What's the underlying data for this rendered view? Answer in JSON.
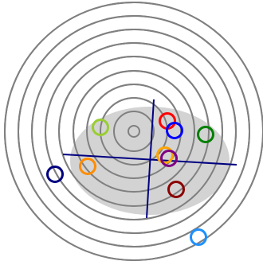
{
  "colors": {
    "background": "#ffffff",
    "rings": "#808080",
    "blob": "#d3d3d3",
    "axes": "#000080"
  },
  "diagram": {
    "ring_count": 9,
    "markers": [
      {
        "id": "yellowgreen",
        "color": "#9acd32"
      },
      {
        "id": "red",
        "color": "#ff0000"
      },
      {
        "id": "blue",
        "color": "#0000ff"
      },
      {
        "id": "green",
        "color": "#008000"
      },
      {
        "id": "orange-center",
        "color": "#ffa500"
      },
      {
        "id": "purple",
        "color": "#800080"
      },
      {
        "id": "navy",
        "color": "#000080"
      },
      {
        "id": "orange-left",
        "color": "#ff8c00"
      },
      {
        "id": "darkred",
        "color": "#8b0000"
      },
      {
        "id": "dodgerblue",
        "color": "#1e90ff"
      }
    ]
  }
}
